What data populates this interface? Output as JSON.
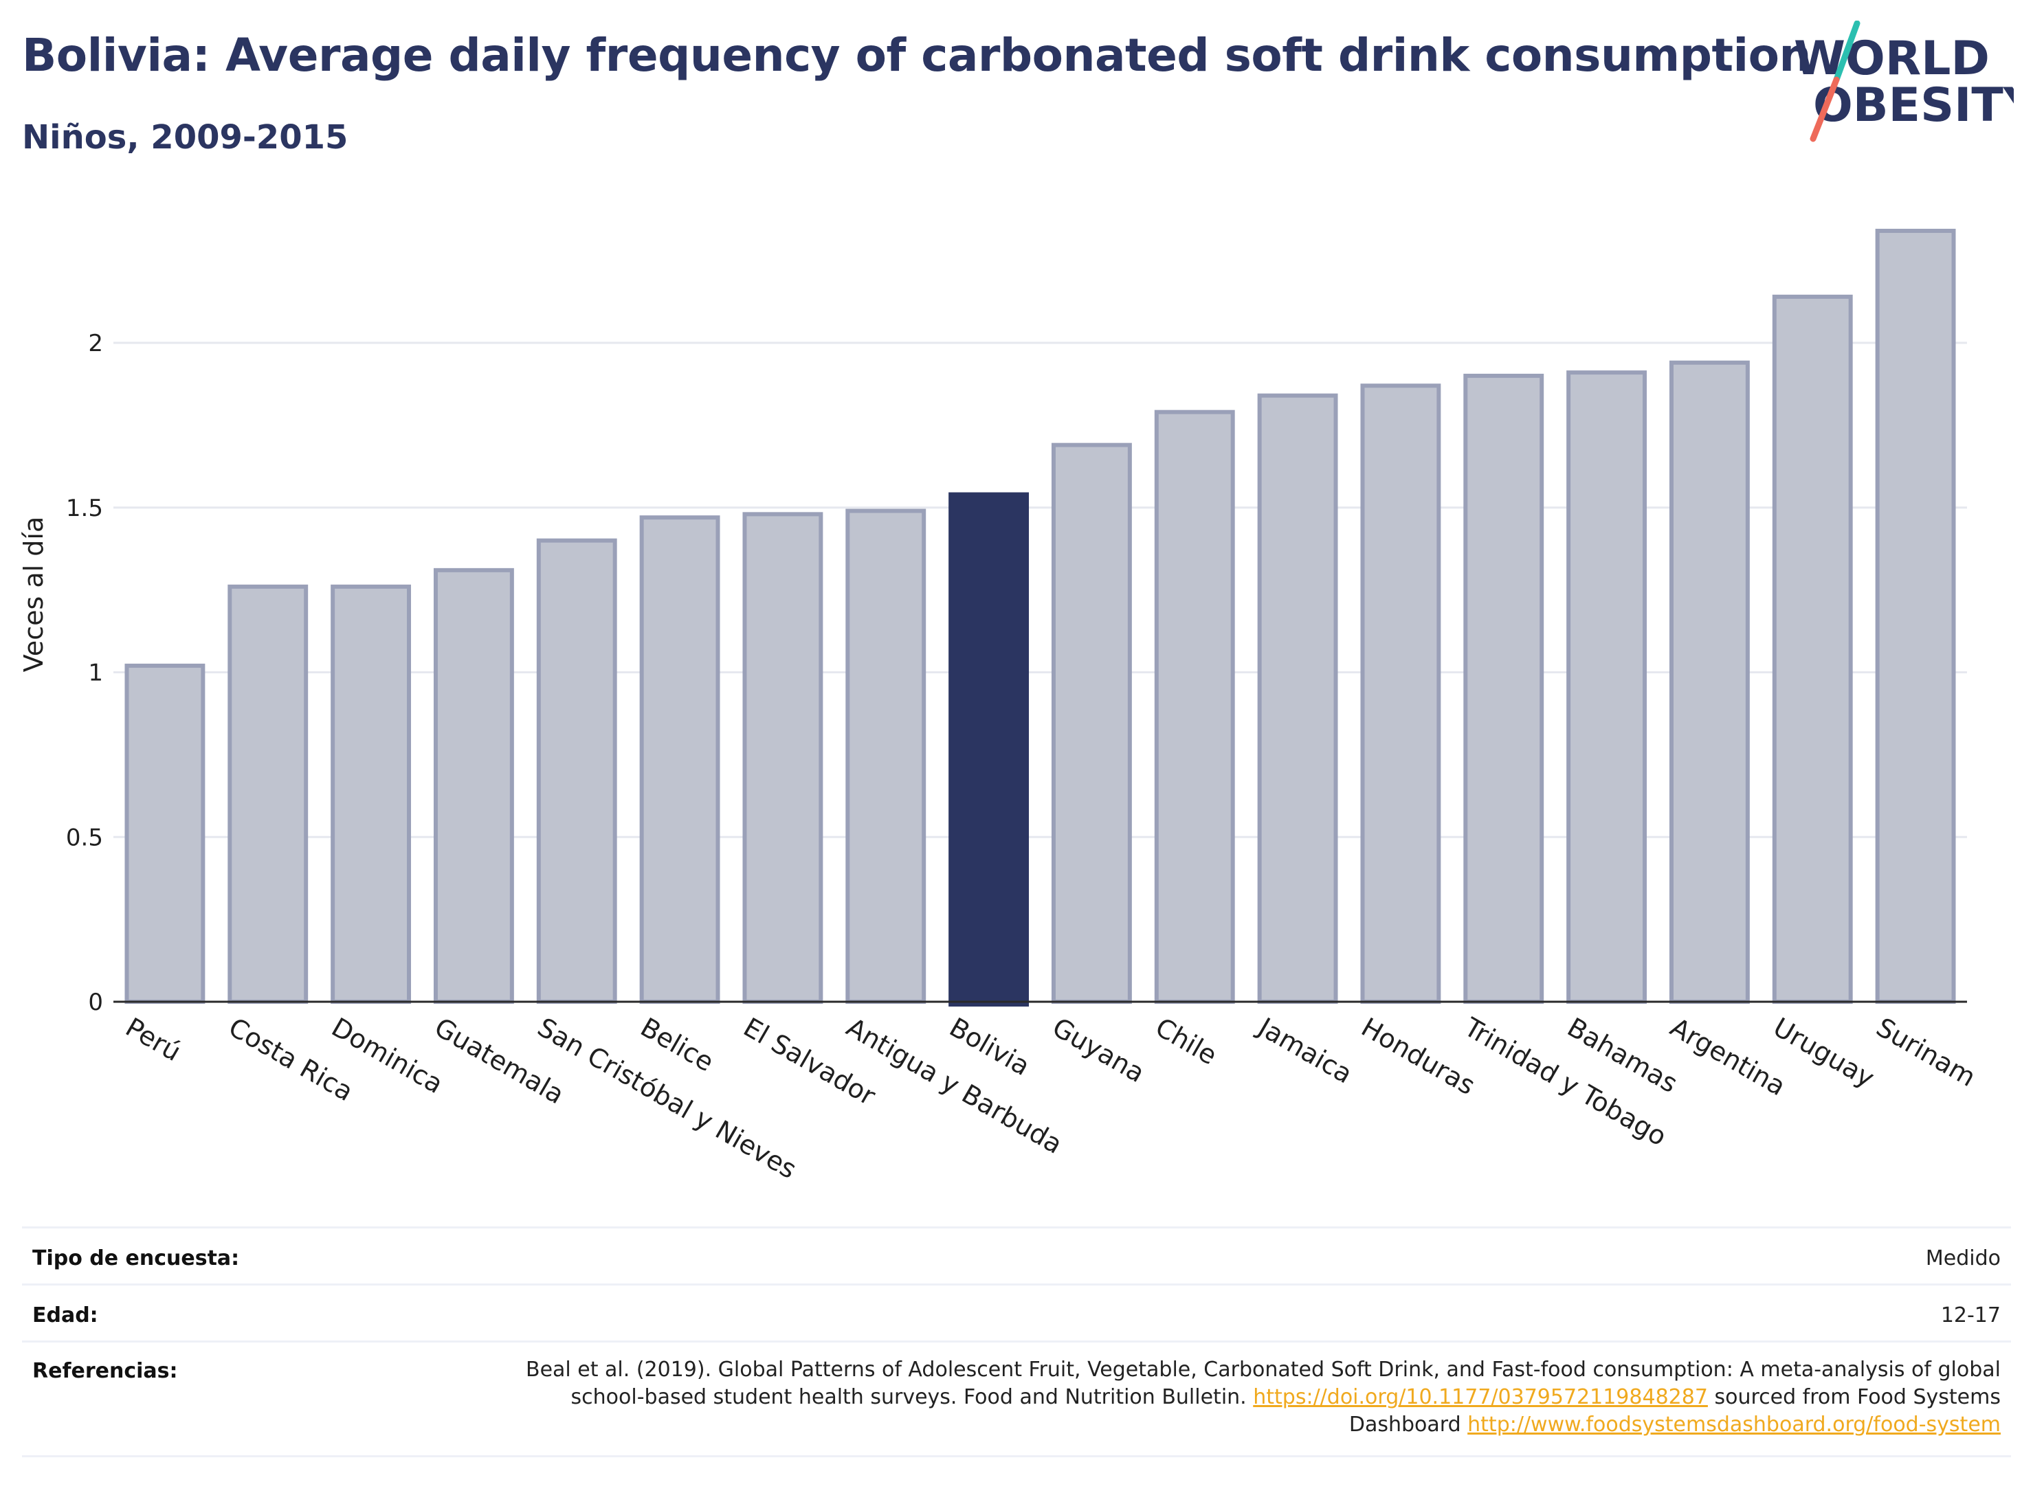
{
  "header": {
    "title": "Bolivia: Average daily frequency of carbonated soft drink consumption",
    "subtitle": "Niños, 2009-2015",
    "logo_line1": "WORLD",
    "logo_line2": "OBESITY"
  },
  "colors": {
    "navy": "#2b3561",
    "bar_default": "#bfc3cf",
    "bar_border": "#9aa0b8",
    "bar_highlight": "#2b3561",
    "logo_teal": "#2bbfb0",
    "logo_coral": "#ee6a5a",
    "link": "#f0a91e"
  },
  "chart_data": {
    "type": "bar",
    "categories": [
      "Perú",
      "Costa Rica",
      "Dominica",
      "Guatemala",
      "San Cristóbal y Nieves",
      "Belice",
      "El Salvador",
      "Antigua y Barbuda",
      "Bolivia",
      "Guyana",
      "Chile",
      "Jamaica",
      "Honduras",
      "Trinidad y Tobago",
      "Bahamas",
      "Argentina",
      "Uruguay",
      "Surinam"
    ],
    "values": [
      1.02,
      1.26,
      1.26,
      1.31,
      1.4,
      1.47,
      1.48,
      1.49,
      1.54,
      1.69,
      1.79,
      1.84,
      1.87,
      1.9,
      1.91,
      1.94,
      2.14,
      2.34
    ],
    "highlight": "Bolivia",
    "ylabel": "Veces al día",
    "xlabel": "",
    "ylim": [
      0,
      2.5
    ],
    "yticks": [
      0,
      0.5,
      1,
      1.5,
      2
    ],
    "ytick_labels": [
      "0",
      "0.5",
      "1",
      "1.5",
      "2"
    ],
    "grid": true
  },
  "info": {
    "survey_label": "Tipo de encuesta:",
    "survey_value": "Medido",
    "age_label": "Edad:",
    "age_value": "12-17",
    "ref_label": "Referencias:",
    "ref_text_1": "Beal et al. (2019). Global Patterns of Adolescent Fruit, Vegetable, Carbonated Soft Drink, and Fast-food consumption: A meta-analysis of global school-based student health surveys. Food and Nutrition Bulletin. ",
    "ref_link_1": "https://doi.org/10.1177/0379572119848287",
    "ref_text_2": " sourced from Food Systems Dashboard ",
    "ref_link_2": "http://www.foodsystemsdashboard.org/food-system"
  }
}
